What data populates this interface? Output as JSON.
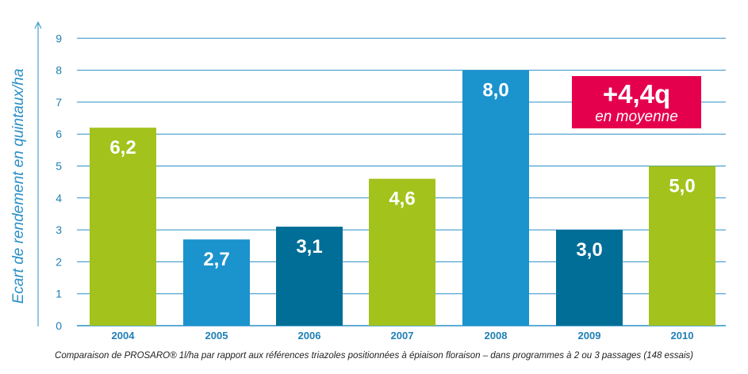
{
  "chart_data": {
    "type": "bar",
    "categories": [
      "2004",
      "2005",
      "2006",
      "2007",
      "2008",
      "2009",
      "2010"
    ],
    "values": [
      6.2,
      2.7,
      3.1,
      4.6,
      8.0,
      3.0,
      5.0
    ],
    "value_labels": [
      "6,2",
      "2,7",
      "3,1",
      "4,6",
      "8,0",
      "3,0",
      "5,0"
    ],
    "bar_colors": [
      "#a3c21c",
      "#1b93cd",
      "#006e96",
      "#a3c21c",
      "#1b93cd",
      "#006e96",
      "#a3c21c"
    ],
    "ylabel": "Ecart de rendement en quintaux/ha",
    "ylim": [
      0,
      9
    ],
    "yticks": [
      0,
      1,
      2,
      3,
      4,
      5,
      6,
      7,
      8,
      9
    ],
    "grid": true,
    "grid_color": "#2a8fc6",
    "axis_text_color": "#1f7fb6",
    "annotation": {
      "main": "+4,4q",
      "sub": "en moyenne",
      "color": "#e5004e"
    },
    "caption": "Comparaison de PROSARO® 1l/ha par rapport aux références triazoles positionnées à épiaison floraison – dans programmes à 2 ou 3 passages (148 essais)"
  }
}
